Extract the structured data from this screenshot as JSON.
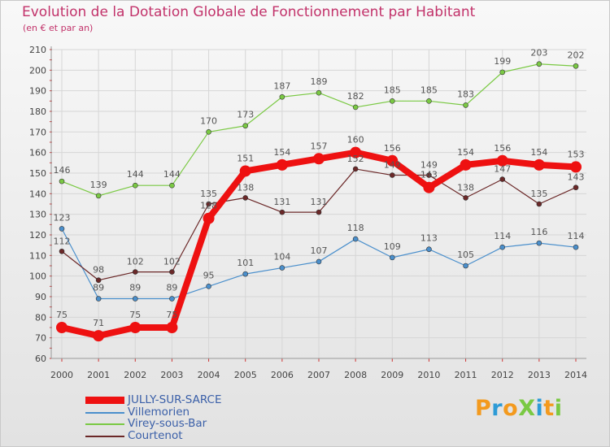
{
  "chart_data": {
    "type": "line",
    "title": "Evolution de la Dotation Globale de Fonctionnement par Habitant",
    "subtitle": "(en € et par an)",
    "xlabel": "",
    "ylabel": "",
    "x": [
      "2000",
      "2001",
      "2002",
      "2003",
      "2004",
      "2005",
      "2006",
      "2007",
      "2008",
      "2009",
      "2010",
      "2011",
      "2012",
      "2013",
      "2014"
    ],
    "ylim": [
      60,
      210
    ],
    "yticks": [
      60,
      70,
      80,
      90,
      100,
      110,
      120,
      130,
      140,
      150,
      160,
      170,
      180,
      190,
      200,
      210
    ],
    "grid": true,
    "legend_position": "bottom-left",
    "series": [
      {
        "name": "Virey-sous-Bar",
        "color": "#7ac943",
        "values": [
          146,
          139,
          144,
          144,
          170,
          173,
          187,
          189,
          182,
          185,
          185,
          183,
          199,
          203,
          202
        ]
      },
      {
        "name": "Villemorien",
        "color": "#4a8fcc",
        "values": [
          123,
          89,
          89,
          89,
          95,
          101,
          104,
          107,
          118,
          109,
          113,
          105,
          114,
          116,
          114
        ]
      },
      {
        "name": "Courtenot",
        "color": "#6b2828",
        "values": [
          112,
          98,
          102,
          102,
          135,
          138,
          131,
          131,
          152,
          149,
          149,
          138,
          147,
          135,
          143
        ]
      },
      {
        "name": "JULLY-SUR-SARCE",
        "color": "#ee1111",
        "values": [
          75,
          71,
          75,
          75,
          128,
          151,
          154,
          157,
          160,
          156,
          143,
          154,
          156,
          154,
          153
        ]
      }
    ],
    "legend_order": [
      "JULLY-SUR-SARCE",
      "Villemorien",
      "Virey-sous-Bar",
      "Courtenot"
    ]
  },
  "logo": {
    "text": "ProXiti",
    "letters": [
      {
        "ch": "P",
        "color": "#f39a1e"
      },
      {
        "ch": "r",
        "color": "#2e9bd6"
      },
      {
        "ch": "o",
        "color": "#f39a1e"
      },
      {
        "ch": "X",
        "color": "#7ac943"
      },
      {
        "ch": "i",
        "color": "#2e9bd6"
      },
      {
        "ch": "t",
        "color": "#f39a1e"
      },
      {
        "ch": "i",
        "color": "#7ac943"
      }
    ]
  }
}
